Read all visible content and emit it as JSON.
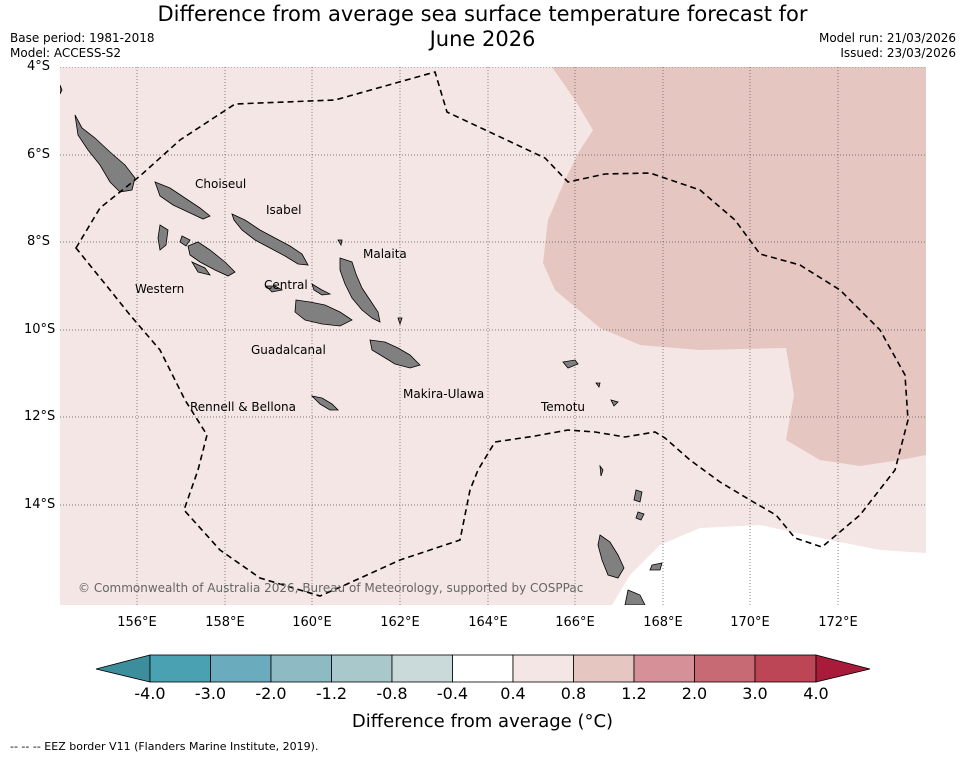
{
  "title": {
    "line1": "Difference from average sea surface temperature forecast for",
    "line2": "June 2026"
  },
  "meta": {
    "base_period": "Base period: 1981-2018",
    "model": "Model: ACCESS-S2",
    "model_run": "Model run: 21/03/2026",
    "issued": "Issued: 23/03/2026"
  },
  "map": {
    "lat_ticks": [
      "4°S",
      "6°S",
      "8°S",
      "10°S",
      "12°S",
      "14°S"
    ],
    "lon_ticks": [
      "156°E",
      "158°E",
      "160°E",
      "162°E",
      "164°E",
      "166°E",
      "168°E",
      "170°E",
      "172°E"
    ],
    "provinces": [
      "Choiseul",
      "Isabel",
      "Malaita",
      "Western",
      "Central",
      "Guadalcanal",
      "Makira-Ulawa",
      "Temotu",
      "Rennell & Bellona"
    ],
    "copyright": "© Commonwealth of Australia 2026, Bureau of Meteorology, supported by COSPPac",
    "colors": {
      "anomaly_04_08": "#f4e6e4",
      "anomaly_08_12": "#e6c6c1",
      "neutral": "#ffffff",
      "land": "#808080"
    }
  },
  "colorbar": {
    "labels": [
      "-4.0",
      "-3.0",
      "-2.0",
      "-1.2",
      "-0.8",
      "-0.4",
      "0.4",
      "0.8",
      "1.2",
      "2.0",
      "3.0",
      "4.0"
    ],
    "colors": [
      "#3c8e9c",
      "#4aa1b2",
      "#6aacbd",
      "#8dbac3",
      "#a9c8cc",
      "#cadadb",
      "#ffffff",
      "#f4e6e4",
      "#e6c6c1",
      "#d59197",
      "#c76a73",
      "#bc4556",
      "#a91b3a"
    ],
    "title": "Difference from average (°C)"
  },
  "footnote": "-- -- -- EEZ border V11 (Flanders Marine Institute, 2019)."
}
